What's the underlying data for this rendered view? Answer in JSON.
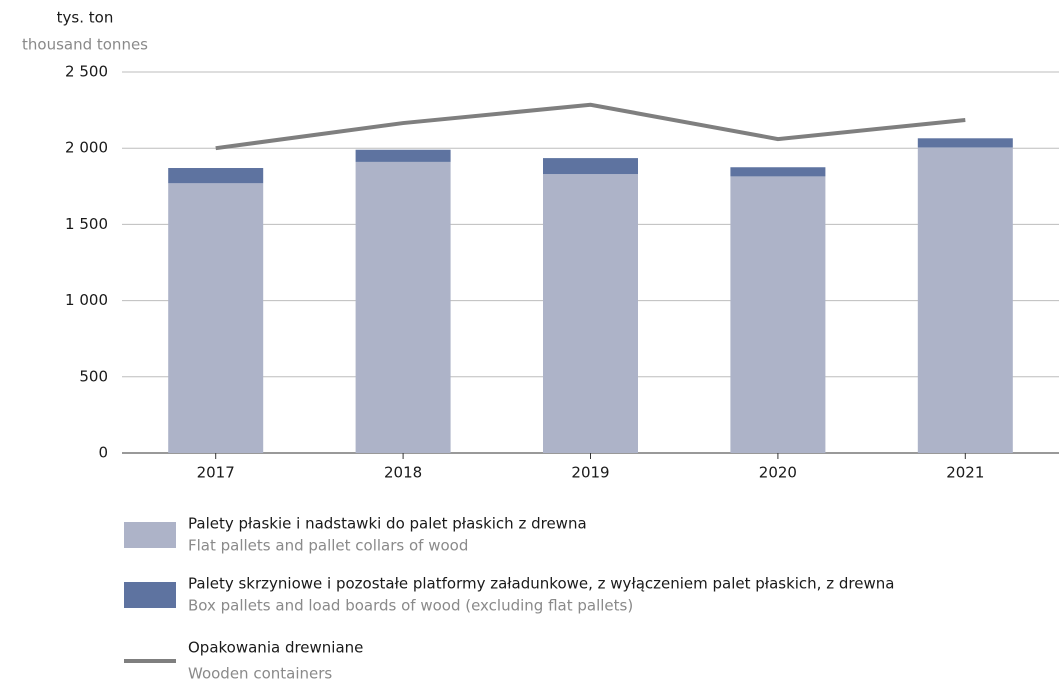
{
  "chart_data": {
    "type": "bar",
    "stacked": true,
    "y_label": "tys. ton",
    "y_label_en": "thousand tonnes",
    "categories": [
      "2017",
      "2018",
      "2019",
      "2020",
      "2021"
    ],
    "series": [
      {
        "name": "Palety płaskie i nadstawki do palet płaskich z drewna",
        "name_en": "Flat pallets and pallet collars of wood",
        "color": "#adb3c8",
        "type": "bar",
        "values": [
          1770,
          1910,
          1830,
          1815,
          2005
        ]
      },
      {
        "name": "Palety skrzyniowe i pozostałe platformy załadunkowe, z wyłączeniem palet płaskich, z drewna",
        "name_en": "Box pallets and load boards of wood (excluding flat pallets)",
        "color": "#5e73a0",
        "type": "bar",
        "values": [
          100,
          80,
          105,
          60,
          60
        ]
      },
      {
        "name": "Opakowania drewniane",
        "name_en": "Wooden containers",
        "color": "#7f7f7f",
        "type": "line",
        "values": [
          2000,
          2165,
          2285,
          2060,
          2185
        ]
      }
    ],
    "ylim": [
      0,
      2500
    ],
    "yticks": [
      0,
      500,
      {
        "value": 1000,
        "label": "1 000"
      },
      {
        "value": 1500,
        "label": "1 500"
      },
      {
        "value": 2000,
        "label": "2 000"
      },
      {
        "value": 2500,
        "label": "2 500"
      }
    ],
    "grid": true
  }
}
